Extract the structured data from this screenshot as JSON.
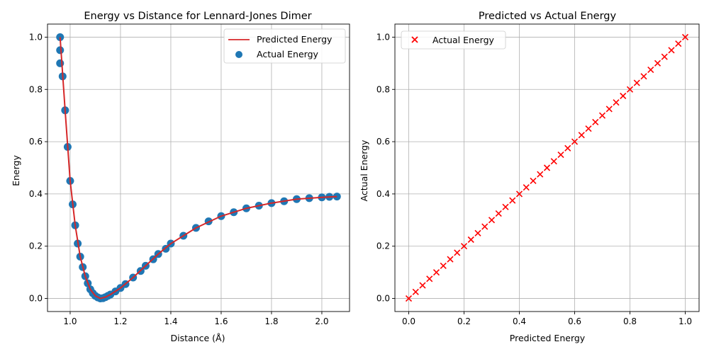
{
  "chart_data": [
    {
      "type": "line",
      "title": "Energy vs Distance for Lennard-Jones Dimer",
      "xlabel": "Distance (Å)",
      "ylabel": "Energy",
      "xlim": [
        0.91,
        2.11
      ],
      "ylim": [
        -0.05,
        1.05
      ],
      "xticks": [
        1.0,
        1.2,
        1.4,
        1.6,
        1.8,
        2.0
      ],
      "xtick_labels": [
        "1.0",
        "1.2",
        "1.4",
        "1.6",
        "1.8",
        "2.0"
      ],
      "yticks": [
        0.0,
        0.2,
        0.4,
        0.6,
        0.8,
        1.0
      ],
      "ytick_labels": [
        "0.0",
        "0.2",
        "0.4",
        "0.6",
        "0.8",
        "1.0"
      ],
      "grid": true,
      "legend": "top-right",
      "series": [
        {
          "name": "Predicted Energy",
          "kind": "line",
          "color": "#d62728",
          "x": [
            0.96,
            0.98,
            1.0,
            1.02,
            1.04,
            1.06,
            1.08,
            1.1,
            1.12,
            1.14,
            1.16,
            1.2,
            1.25,
            1.3,
            1.35,
            1.4,
            1.5,
            1.6,
            1.7,
            1.8,
            1.9,
            2.0,
            2.06
          ],
          "y": [
            1.0,
            0.72,
            0.45,
            0.28,
            0.16,
            0.085,
            0.035,
            0.01,
            0.0,
            0.005,
            0.015,
            0.04,
            0.08,
            0.125,
            0.17,
            0.21,
            0.27,
            0.315,
            0.345,
            0.365,
            0.38,
            0.387,
            0.39
          ]
        },
        {
          "name": "Actual Energy",
          "kind": "scatter",
          "color": "#1f77b4",
          "x": [
            0.96,
            0.96,
            0.96,
            0.97,
            0.98,
            0.99,
            1.0,
            1.01,
            1.02,
            1.03,
            1.04,
            1.05,
            1.06,
            1.07,
            1.08,
            1.09,
            1.1,
            1.11,
            1.12,
            1.13,
            1.14,
            1.15,
            1.16,
            1.18,
            1.2,
            1.22,
            1.25,
            1.28,
            1.3,
            1.33,
            1.35,
            1.38,
            1.4,
            1.45,
            1.5,
            1.55,
            1.6,
            1.65,
            1.7,
            1.75,
            1.8,
            1.85,
            1.9,
            1.95,
            2.0,
            2.03,
            2.06
          ],
          "y": [
            1.0,
            0.95,
            0.9,
            0.85,
            0.72,
            0.58,
            0.45,
            0.36,
            0.28,
            0.21,
            0.16,
            0.12,
            0.085,
            0.058,
            0.035,
            0.02,
            0.01,
            0.004,
            0.0,
            0.001,
            0.005,
            0.01,
            0.015,
            0.027,
            0.04,
            0.055,
            0.08,
            0.105,
            0.125,
            0.15,
            0.17,
            0.19,
            0.21,
            0.24,
            0.27,
            0.295,
            0.315,
            0.33,
            0.345,
            0.355,
            0.365,
            0.372,
            0.38,
            0.384,
            0.387,
            0.389,
            0.39
          ]
        }
      ]
    },
    {
      "type": "scatter",
      "title": "Predicted vs Actual Energy",
      "xlabel": "Predicted Energy",
      "ylabel": "Actual Energy",
      "xlim": [
        -0.05,
        1.05
      ],
      "ylim": [
        -0.05,
        1.05
      ],
      "xticks": [
        0.0,
        0.2,
        0.4,
        0.6,
        0.8,
        1.0
      ],
      "xtick_labels": [
        "0.0",
        "0.2",
        "0.4",
        "0.6",
        "0.8",
        "1.0"
      ],
      "yticks": [
        0.0,
        0.2,
        0.4,
        0.6,
        0.8,
        1.0
      ],
      "ytick_labels": [
        "0.0",
        "0.2",
        "0.4",
        "0.6",
        "0.8",
        "1.0"
      ],
      "grid": true,
      "legend": "top-left",
      "series": [
        {
          "name": "Actual Energy",
          "kind": "scatter",
          "marker": "x",
          "color": "#ff0000",
          "x": [
            0.0,
            0.025,
            0.05,
            0.075,
            0.1,
            0.125,
            0.15,
            0.175,
            0.2,
            0.225,
            0.25,
            0.275,
            0.3,
            0.325,
            0.35,
            0.375,
            0.4,
            0.425,
            0.45,
            0.475,
            0.5,
            0.525,
            0.55,
            0.575,
            0.6,
            0.625,
            0.65,
            0.675,
            0.7,
            0.725,
            0.75,
            0.775,
            0.8,
            0.825,
            0.85,
            0.875,
            0.9,
            0.925,
            0.95,
            0.975,
            1.0
          ],
          "y": [
            0.0,
            0.025,
            0.05,
            0.075,
            0.1,
            0.125,
            0.15,
            0.175,
            0.2,
            0.225,
            0.25,
            0.275,
            0.3,
            0.325,
            0.35,
            0.375,
            0.4,
            0.425,
            0.45,
            0.475,
            0.5,
            0.525,
            0.55,
            0.575,
            0.6,
            0.625,
            0.65,
            0.675,
            0.7,
            0.725,
            0.75,
            0.775,
            0.8,
            0.825,
            0.85,
            0.875,
            0.9,
            0.925,
            0.95,
            0.975,
            1.0
          ]
        }
      ]
    }
  ]
}
